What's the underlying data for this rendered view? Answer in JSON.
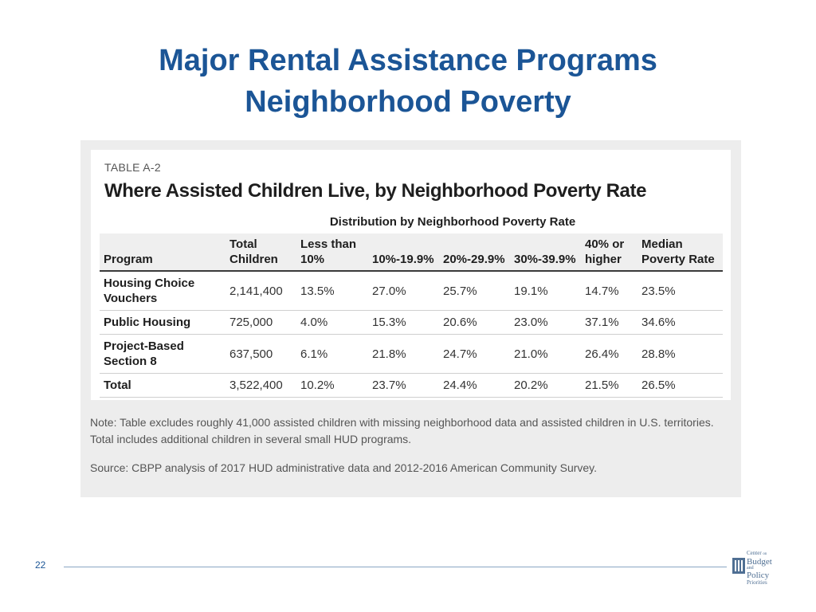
{
  "slide": {
    "title_line1": "Major Rental Assistance Programs",
    "title_line2": "Neighborhood Poverty",
    "page_number": "22"
  },
  "table": {
    "label": "TABLE A-2",
    "title": "Where Assisted Children Live, by Neighborhood Poverty Rate",
    "distribution_header": "Distribution by Neighborhood Poverty Rate",
    "columns": [
      "Program",
      "Total Children",
      "Less than 10%",
      "10%-19.9%",
      "20%-29.9%",
      "30%-39.9%",
      "40% or higher",
      "Median Poverty Rate"
    ],
    "rows": [
      [
        "Housing Choice Vouchers",
        "2,141,400",
        "13.5%",
        "27.0%",
        "25.7%",
        "19.1%",
        "14.7%",
        "23.5%"
      ],
      [
        "Public Housing",
        "725,000",
        "4.0%",
        "15.3%",
        "20.6%",
        "23.0%",
        "37.1%",
        "34.6%"
      ],
      [
        "Project-Based Section 8",
        "637,500",
        "6.1%",
        "21.8%",
        "24.7%",
        "21.0%",
        "26.4%",
        "28.8%"
      ],
      [
        "Total",
        "3,522,400",
        "10.2%",
        "23.7%",
        "24.4%",
        "20.2%",
        "21.5%",
        "26.5%"
      ]
    ],
    "note": "Note: Table excludes roughly 41,000 assisted children with missing neighborhood data and assisted children in U.S. territories. Total includes additional children in several small HUD programs.",
    "source": "Source: CBPP analysis of 2017 HUD administrative data and 2012-2016 American Community Survey."
  },
  "logo": {
    "line1": "Center",
    "line1b": "on",
    "line2": "Budget",
    "line3": "and",
    "line4": "Policy",
    "line5": "Priorities"
  },
  "colors": {
    "title": "#1b5596",
    "panel": "#ededed",
    "header_row": "#efefef"
  }
}
